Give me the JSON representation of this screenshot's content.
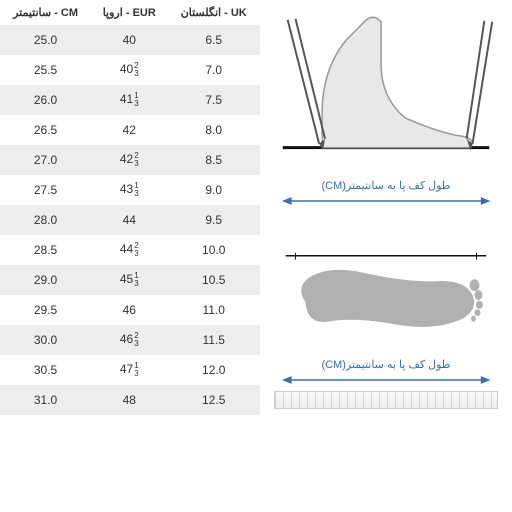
{
  "table": {
    "headers": {
      "cm": "CM - سانتیمتر",
      "eur": "EUR - اروپا",
      "uk": "UK - انگلستان"
    },
    "rows": [
      {
        "cm": "25.0",
        "eur_base": "40",
        "eur_num": "",
        "eur_den": "",
        "uk": "6.5"
      },
      {
        "cm": "25.5",
        "eur_base": "40",
        "eur_num": "2",
        "eur_den": "3",
        "uk": "7.0"
      },
      {
        "cm": "26.0",
        "eur_base": "41",
        "eur_num": "1",
        "eur_den": "3",
        "uk": "7.5"
      },
      {
        "cm": "26.5",
        "eur_base": "42",
        "eur_num": "",
        "eur_den": "",
        "uk": "8.0"
      },
      {
        "cm": "27.0",
        "eur_base": "42",
        "eur_num": "2",
        "eur_den": "3",
        "uk": "8.5"
      },
      {
        "cm": "27.5",
        "eur_base": "43",
        "eur_num": "1",
        "eur_den": "3",
        "uk": "9.0"
      },
      {
        "cm": "28.0",
        "eur_base": "44",
        "eur_num": "",
        "eur_den": "",
        "uk": "9.5"
      },
      {
        "cm": "28.5",
        "eur_base": "44",
        "eur_num": "2",
        "eur_den": "3",
        "uk": "10.0"
      },
      {
        "cm": "29.0",
        "eur_base": "45",
        "eur_num": "1",
        "eur_den": "3",
        "uk": "10.5"
      },
      {
        "cm": "29.5",
        "eur_base": "46",
        "eur_num": "",
        "eur_den": "",
        "uk": "11.0"
      },
      {
        "cm": "30.0",
        "eur_base": "46",
        "eur_num": "2",
        "eur_den": "3",
        "uk": "11.5"
      },
      {
        "cm": "30.5",
        "eur_base": "47",
        "eur_num": "1",
        "eur_den": "3",
        "uk": "12.0"
      },
      {
        "cm": "31.0",
        "eur_base": "48",
        "eur_num": "",
        "eur_den": "",
        "uk": "12.5"
      }
    ],
    "colors": {
      "row_alt_bg": "#eeeeee",
      "row_norm_bg": "#ffffff",
      "text": "#333333"
    }
  },
  "diagrams": {
    "side_foot_caption": "طول کف پا به سانتیمتر(CM)",
    "footprint_caption": "طول کف پا به سانتیمتر(CM)",
    "caption_color": "#3a6fa8",
    "arrow_color": "#3a6fa8",
    "foot_fill": "#e8e8e8",
    "foot_stroke": "#999999",
    "pencil_stroke": "#555555",
    "base_line_color": "#111111",
    "footprint_fill": "#b0b0b0"
  }
}
